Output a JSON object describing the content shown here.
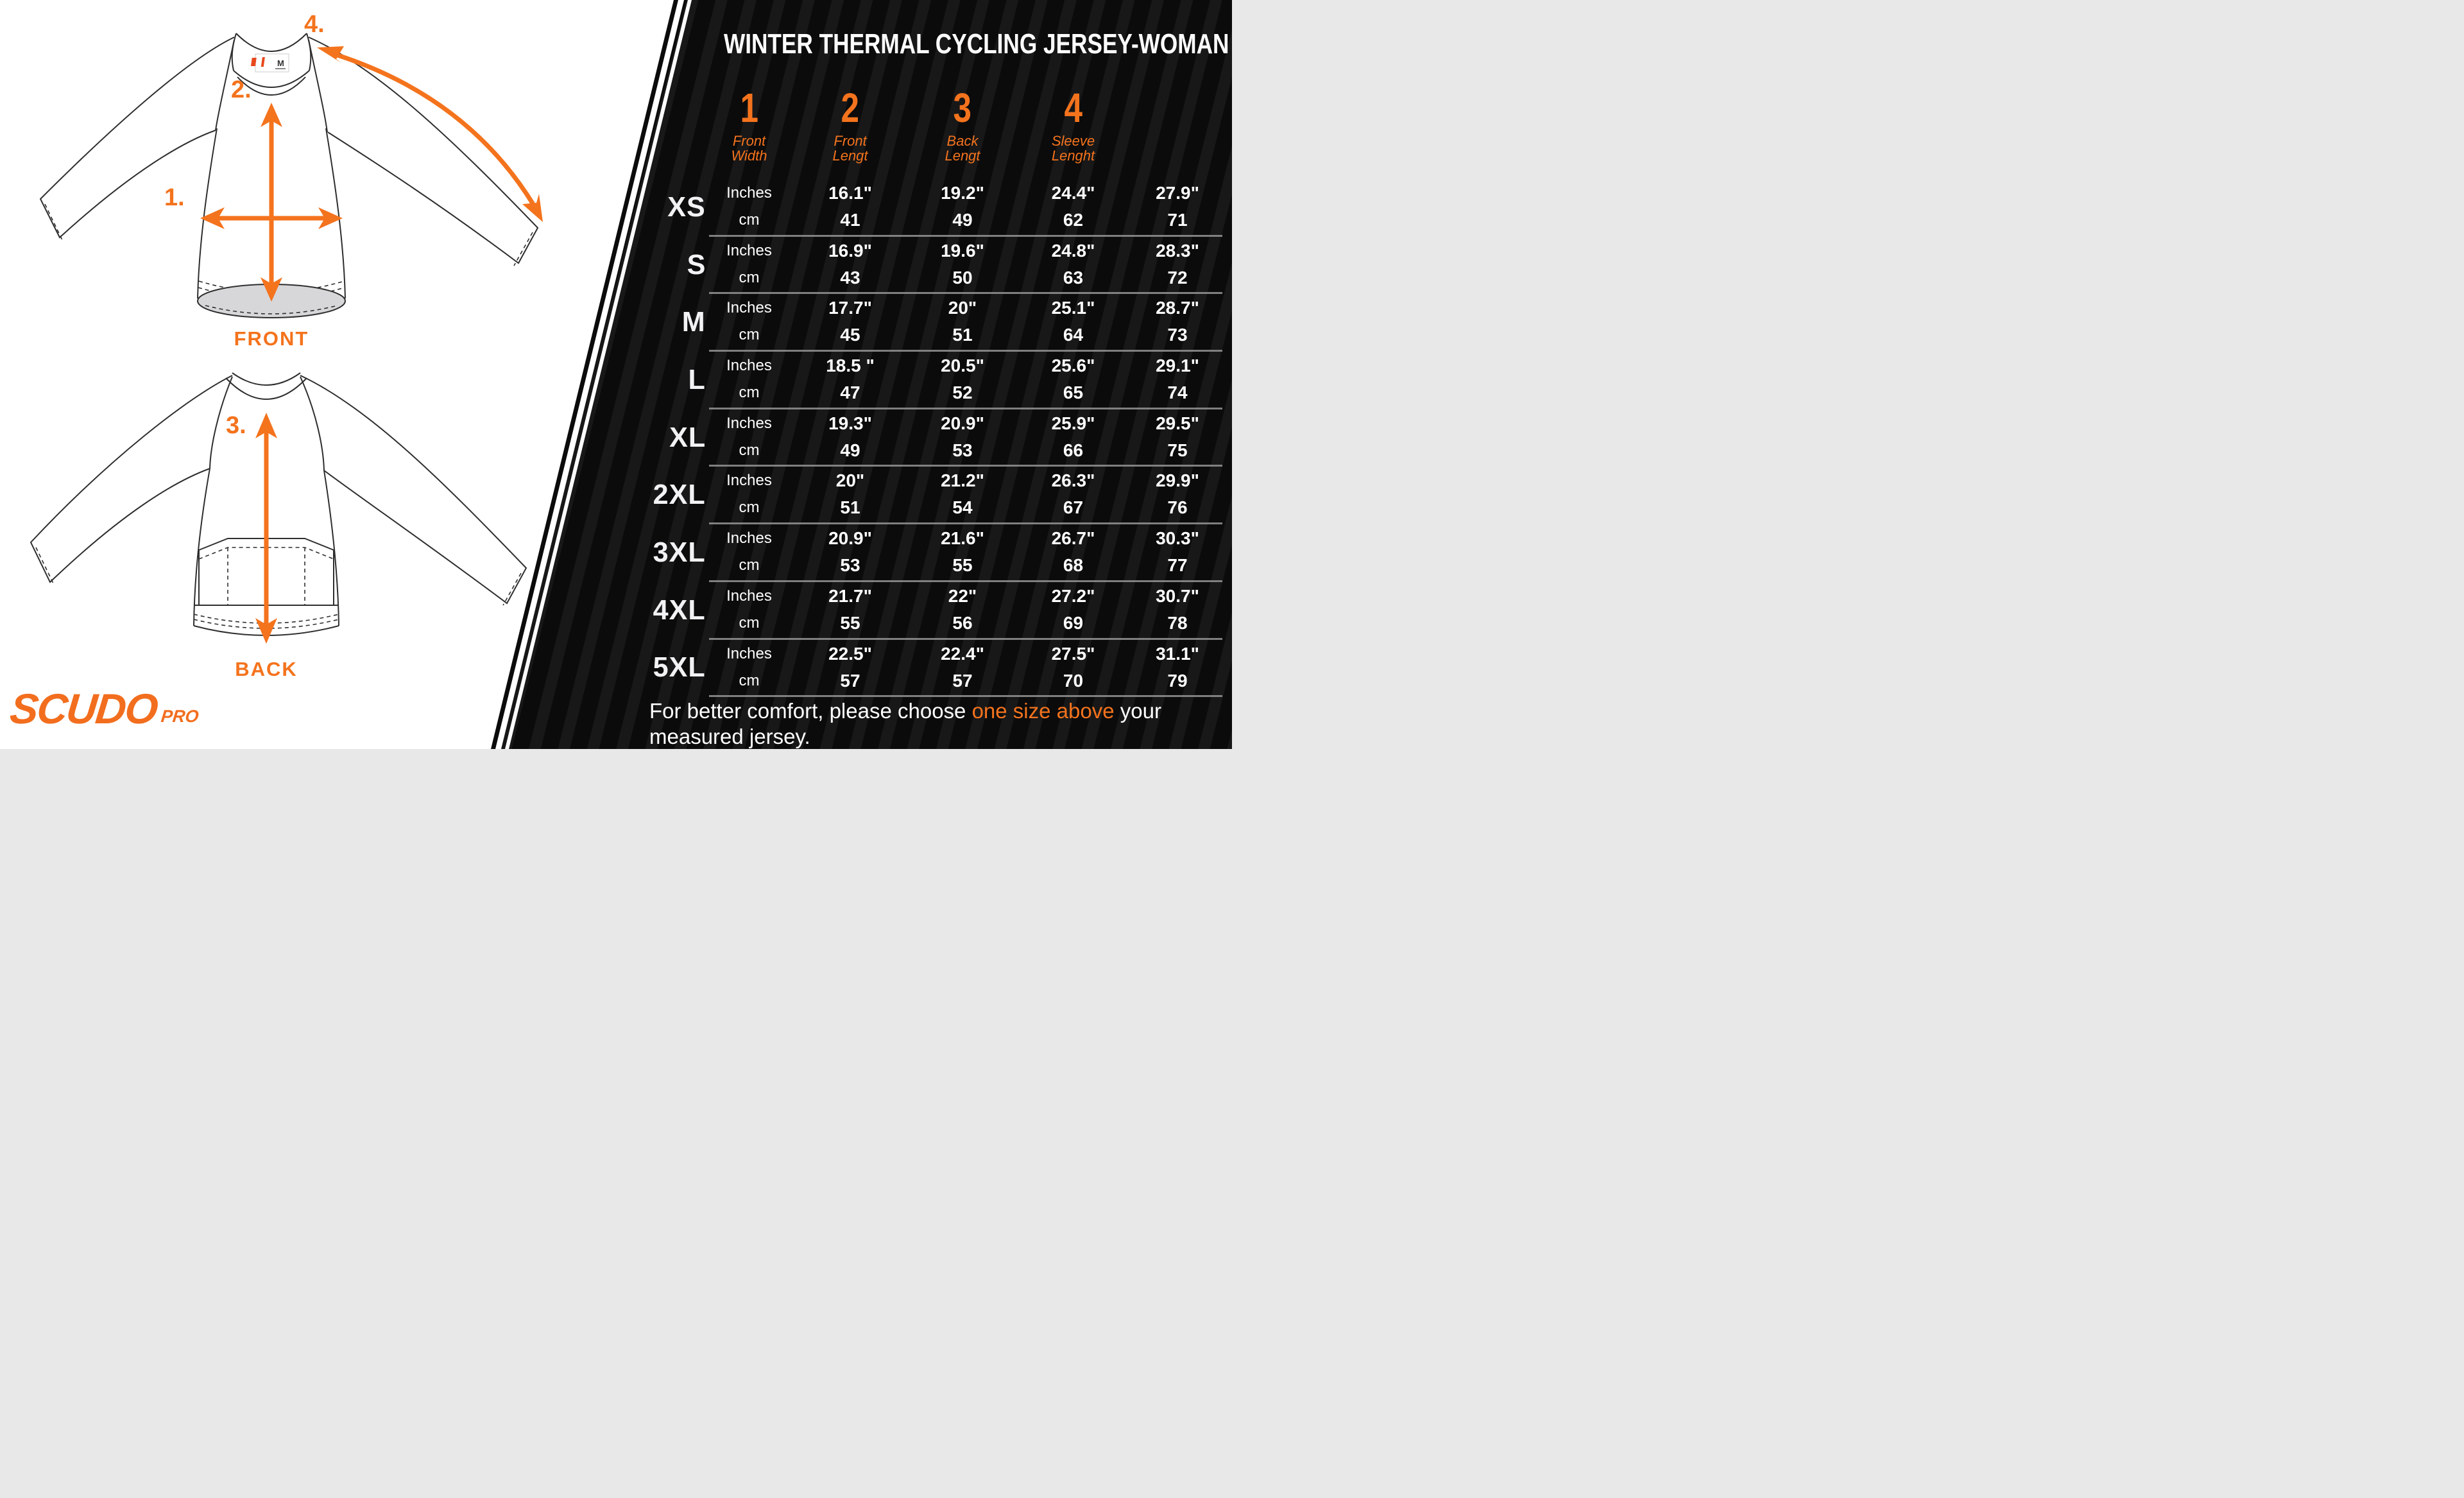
{
  "brand": {
    "logo_text": "SCUDO",
    "logo_suffix": "PRO"
  },
  "header": {
    "title": "WINTER THERMAL CYCLING JERSEY-WOMAN"
  },
  "diagram": {
    "front_label": "FRONT",
    "back_label": "BACK",
    "markers": {
      "m1": "1.",
      "m2": "2.",
      "m3": "3.",
      "m4": "4."
    },
    "collar_tag_size": "M"
  },
  "table": {
    "unit_labels": {
      "inches": "Inches",
      "cm": "cm"
    },
    "columns": [
      {
        "num": "1",
        "line1": "Front",
        "line2": "Width"
      },
      {
        "num": "2",
        "line1": "Front",
        "line2": "Lengt"
      },
      {
        "num": "3",
        "line1": "Back",
        "line2": "Lengt"
      },
      {
        "num": "4",
        "line1": "Sleeve",
        "line2": "Lenght"
      }
    ],
    "rows": [
      {
        "size": "XS",
        "inches": [
          "16.1\"",
          "19.2\"",
          "24.4\"",
          "27.9\""
        ],
        "cm": [
          "41",
          "49",
          "62",
          "71"
        ]
      },
      {
        "size": "S",
        "inches": [
          "16.9\"",
          "19.6\"",
          "24.8\"",
          "28.3\""
        ],
        "cm": [
          "43",
          "50",
          "63",
          "72"
        ]
      },
      {
        "size": "M",
        "inches": [
          "17.7\"",
          "20\"",
          "25.1\"",
          "28.7\""
        ],
        "cm": [
          "45",
          "51",
          "64",
          "73"
        ]
      },
      {
        "size": "L",
        "inches": [
          "18.5 \"",
          "20.5\"",
          "25.6\"",
          "29.1\""
        ],
        "cm": [
          "47",
          "52",
          "65",
          "74"
        ]
      },
      {
        "size": "XL",
        "inches": [
          "19.3\"",
          "20.9\"",
          "25.9\"",
          "29.5\""
        ],
        "cm": [
          "49",
          "53",
          "66",
          "75"
        ]
      },
      {
        "size": "2XL",
        "inches": [
          "20\"",
          "21.2\"",
          "26.3\"",
          "29.9\""
        ],
        "cm": [
          "51",
          "54",
          "67",
          "76"
        ]
      },
      {
        "size": "3XL",
        "inches": [
          "20.9\"",
          "21.6\"",
          "26.7\"",
          "30.3\""
        ],
        "cm": [
          "53",
          "55",
          "68",
          "77"
        ]
      },
      {
        "size": "4XL",
        "inches": [
          "21.7\"",
          "22\"",
          "27.2\"",
          "30.7\""
        ],
        "cm": [
          "55",
          "56",
          "69",
          "78"
        ]
      },
      {
        "size": "5XL",
        "inches": [
          "22.5\"",
          "22.4\"",
          "27.5\"",
          "31.1\""
        ],
        "cm": [
          "57",
          "57",
          "70",
          "79"
        ]
      }
    ]
  },
  "note": {
    "prefix": "For better comfort, please choose ",
    "highlight": "one size above",
    "suffix": " your measured jersey."
  },
  "colors": {
    "accent": "#f4731d",
    "logo_orange": "#f26e1e",
    "panel_bg": "#0b0b0b",
    "panel_stripe": "#181818",
    "separator": "#949494",
    "hem_fill": "#d7d7da"
  }
}
